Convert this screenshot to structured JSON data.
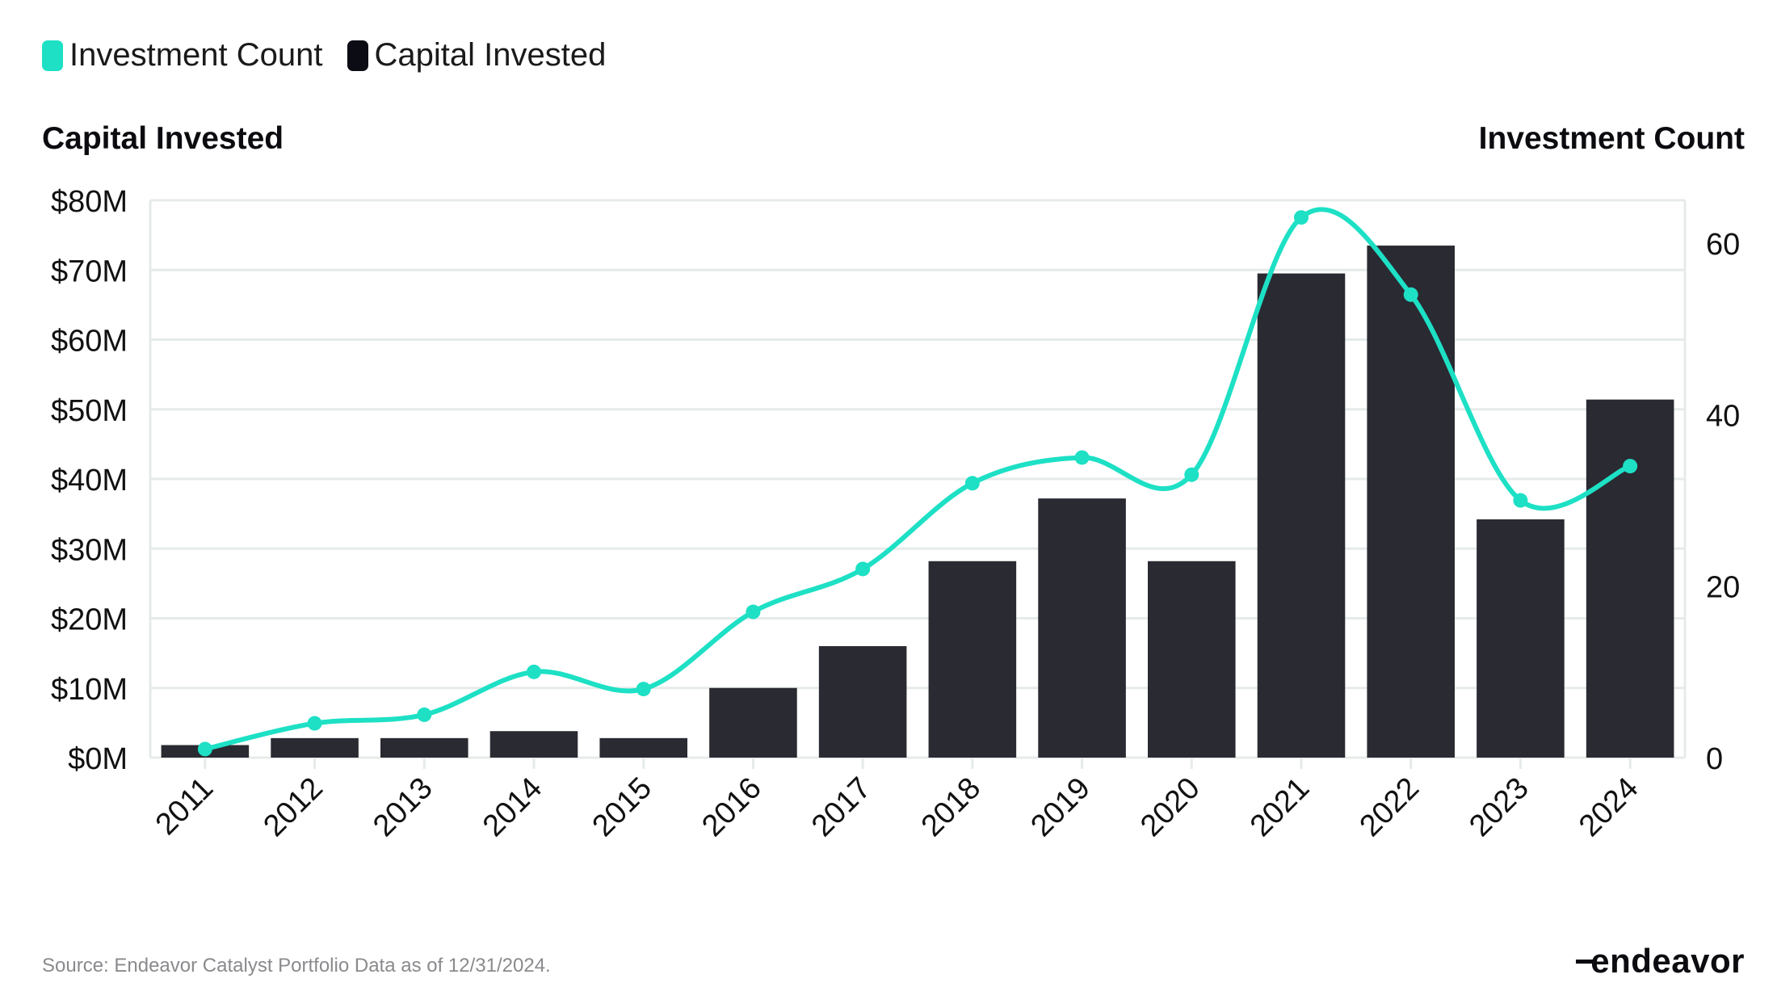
{
  "legend": {
    "items": [
      {
        "label": "Investment Count",
        "color": "#1de0c5"
      },
      {
        "label": "Capital Invested",
        "color": "#0c0c14"
      }
    ]
  },
  "axes": {
    "left_title": "Capital Invested",
    "right_title": "Investment Count"
  },
  "footer": {
    "source": "Source: Endeavor Catalyst Portfolio Data as of 12/31/2024.",
    "brand": "endeavor"
  },
  "colors": {
    "bar": "#2a2a32",
    "line": "#1de0c5",
    "grid": "#e6ebea",
    "text": "#111111"
  },
  "chart_data": {
    "type": "bar",
    "title": "",
    "xlabel": "",
    "ylabel": "Capital Invested",
    "y2label": "Investment Count",
    "categories": [
      "2011",
      "2012",
      "2013",
      "2014",
      "2015",
      "2016",
      "2017",
      "2018",
      "2019",
      "2020",
      "2021",
      "2022",
      "2023",
      "2024"
    ],
    "ylim": [
      0,
      80
    ],
    "yticks": [
      0,
      10,
      20,
      30,
      40,
      50,
      60,
      70,
      80
    ],
    "ytick_labels": [
      "$0M",
      "$10M",
      "$20M",
      "$30M",
      "$40M",
      "$50M",
      "$60M",
      "$70M",
      "$80M"
    ],
    "y2lim": [
      0,
      65
    ],
    "y2ticks": [
      0,
      20,
      40,
      60
    ],
    "y2tick_labels": [
      "0",
      "20",
      "40",
      "60"
    ],
    "grid": true,
    "legend_position": "top-left",
    "series": [
      {
        "name": "Capital Invested",
        "type": "bar",
        "axis": "left",
        "unit": "$M",
        "values": [
          1.8,
          2.8,
          2.8,
          3.8,
          2.8,
          10.0,
          16.0,
          28.2,
          37.2,
          28.2,
          69.5,
          73.5,
          34.2,
          51.4
        ]
      },
      {
        "name": "Investment Count",
        "type": "line",
        "smooth": true,
        "axis": "right",
        "values": [
          1,
          4,
          5,
          10,
          8,
          17,
          22,
          32,
          35,
          33,
          63,
          54,
          30,
          34
        ]
      }
    ]
  }
}
